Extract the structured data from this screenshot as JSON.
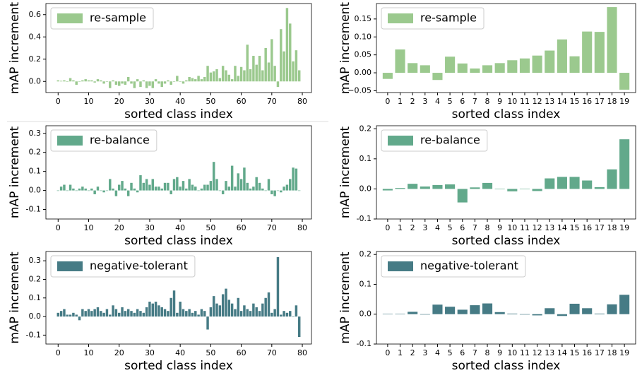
{
  "chart_data": [
    {
      "type": "bar",
      "xlabel": "sorted class index",
      "ylabel": "mAP increment",
      "legend": "re-sample",
      "legend_loc": "upper left",
      "color": "#9bc98e",
      "x": [
        0,
        1,
        2,
        3,
        4,
        5,
        6,
        7,
        8,
        9,
        10,
        11,
        12,
        13,
        14,
        15,
        16,
        17,
        18,
        19,
        20,
        21,
        22,
        23,
        24,
        25,
        26,
        27,
        28,
        29,
        30,
        31,
        32,
        33,
        34,
        35,
        36,
        37,
        38,
        39,
        40,
        41,
        42,
        43,
        44,
        45,
        46,
        47,
        48,
        49,
        50,
        51,
        52,
        53,
        54,
        55,
        56,
        57,
        58,
        59,
        60,
        61,
        62,
        63,
        64,
        65,
        66,
        67,
        68,
        69,
        70,
        71,
        72,
        73,
        74,
        75,
        76,
        77,
        78,
        79
      ],
      "values": [
        0.01,
        0.005,
        0.01,
        0.0,
        0.03,
        0.01,
        -0.03,
        0.0,
        0.01,
        0.02,
        0.01,
        0.01,
        -0.01,
        0.02,
        0.01,
        -0.02,
        0.0,
        -0.06,
        0.01,
        -0.03,
        -0.04,
        -0.02,
        -0.03,
        0.04,
        -0.02,
        -0.06,
        0.02,
        -0.05,
        0.01,
        -0.06,
        -0.04,
        -0.06,
        0.02,
        -0.02,
        -0.05,
        -0.02,
        0.01,
        -0.03,
        0.0,
        0.05,
        0.0,
        -0.02,
        0.01,
        0.04,
        0.03,
        0.02,
        0.05,
        0.02,
        0.04,
        0.14,
        0.08,
        0.09,
        0.11,
        0.03,
        0.14,
        0.1,
        0.06,
        0.02,
        0.14,
        0.05,
        0.13,
        0.1,
        0.33,
        0.11,
        0.23,
        0.15,
        0.23,
        0.1,
        0.3,
        0.17,
        0.38,
        0.14,
        -0.05,
        0.47,
        0.27,
        0.66,
        0.52,
        0.18,
        0.28,
        0.1
      ],
      "xlim": [
        -4,
        83
      ],
      "xticks": [
        0,
        10,
        20,
        30,
        40,
        50,
        60,
        70,
        80
      ],
      "ylim": [
        -0.1,
        0.7
      ],
      "yticks": [
        {
          "value": 0,
          "label": "0.0"
        },
        0.2,
        0.4,
        0.6
      ]
    },
    {
      "type": "bar",
      "xlabel": "sorted class index",
      "ylabel": "mAP increment",
      "legend": "re-sample",
      "legend_loc": "upper left",
      "color": "#9bc98e",
      "categories": [
        "0",
        "1",
        "2",
        "3",
        "4",
        "5",
        "6",
        "7",
        "8",
        "9",
        "10",
        "11",
        "12",
        "13",
        "14",
        "15",
        "16",
        "17",
        "18",
        "19"
      ],
      "values": [
        -0.017,
        0.065,
        0.027,
        0.021,
        -0.02,
        0.045,
        0.026,
        0.012,
        0.021,
        0.027,
        0.035,
        0.04,
        0.048,
        0.062,
        0.093,
        0.046,
        0.115,
        0.114,
        0.183,
        -0.047
      ],
      "ylim": [
        -0.055,
        0.193
      ],
      "yticks": [
        {
          "value": -0.05,
          "label": "−0.05"
        },
        {
          "value": 0,
          "label": "0.00"
        },
        {
          "value": 0.05,
          "label": "0.05"
        },
        {
          "value": 0.1,
          "label": "0.10"
        },
        {
          "value": 0.15,
          "label": "0.15"
        }
      ]
    },
    {
      "type": "bar",
      "xlabel": "sorted class index",
      "ylabel": "mAP increment",
      "legend": "re-balance",
      "legend_loc": "upper left",
      "color": "#62a98b",
      "x": [
        0,
        1,
        2,
        3,
        4,
        5,
        6,
        7,
        8,
        9,
        10,
        11,
        12,
        13,
        14,
        15,
        16,
        17,
        18,
        19,
        20,
        21,
        22,
        23,
        24,
        25,
        26,
        27,
        28,
        29,
        30,
        31,
        32,
        33,
        34,
        35,
        36,
        37,
        38,
        39,
        40,
        41,
        42,
        43,
        44,
        45,
        46,
        47,
        48,
        49,
        50,
        51,
        52,
        53,
        54,
        55,
        56,
        57,
        58,
        59,
        60,
        61,
        62,
        63,
        64,
        65,
        66,
        67,
        68,
        69,
        70,
        71,
        72,
        73,
        74,
        75,
        76,
        77,
        78,
        79
      ],
      "values": [
        0.0,
        0.02,
        0.03,
        0.0,
        0.03,
        0.01,
        0.0,
        0.01,
        0.02,
        0.01,
        0.0,
        0.01,
        -0.02,
        0.02,
        0.0,
        -0.01,
        0.0,
        0.06,
        0.01,
        -0.03,
        0.03,
        0.05,
        0.01,
        -0.03,
        0.04,
        0.01,
        -0.01,
        0.08,
        0.04,
        0.06,
        0.03,
        0.06,
        0.02,
        0.02,
        0.01,
        0.04,
        0.04,
        -0.02,
        0.06,
        0.07,
        0.02,
        0.05,
        0.01,
        0.06,
        0.03,
        0.02,
        0.0,
        0.01,
        0.03,
        0.03,
        0.05,
        0.15,
        0.06,
        0.0,
        -0.02,
        0.05,
        0.02,
        0.13,
        0.02,
        0.09,
        0.06,
        0.12,
        0.04,
        0.01,
        0.02,
        0.07,
        0.04,
        0.01,
        0.0,
        0.06,
        -0.02,
        -0.03,
        0.0,
        -0.01,
        0.02,
        0.03,
        0.06,
        0.12,
        0.115,
        0.0
      ],
      "xlim": [
        -4,
        83
      ],
      "xticks": [
        0,
        10,
        20,
        30,
        40,
        50,
        60,
        70,
        80
      ],
      "ylim": [
        -0.15,
        0.34
      ],
      "yticks": [
        -0.1,
        {
          "value": 0,
          "label": "0.0"
        },
        0.1,
        0.2,
        0.3
      ]
    },
    {
      "type": "bar",
      "xlabel": "sorted class index",
      "ylabel": "mAP increment",
      "legend": "re-balance",
      "legend_loc": "upper left",
      "color": "#62a98b",
      "categories": [
        "0",
        "1",
        "2",
        "3",
        "4",
        "5",
        "6",
        "7",
        "8",
        "9",
        "10",
        "11",
        "12",
        "13",
        "14",
        "15",
        "16",
        "17",
        "18",
        "19"
      ],
      "values": [
        -0.005,
        0.003,
        0.017,
        0.008,
        0.013,
        0.015,
        -0.045,
        0.005,
        0.02,
        0.0,
        -0.008,
        0.0,
        -0.007,
        0.035,
        0.04,
        0.04,
        0.028,
        0.006,
        0.065,
        0.165
      ],
      "ylim": [
        -0.1,
        0.21
      ],
      "yticks": [
        -0.1,
        {
          "value": 0,
          "label": "0.0"
        },
        0.1,
        0.2
      ]
    },
    {
      "type": "bar",
      "xlabel": "sorted class index",
      "ylabel": "mAP increment",
      "legend": "negative-tolerant",
      "legend_loc": "upper left",
      "color": "#467b85",
      "x": [
        0,
        1,
        2,
        3,
        4,
        5,
        6,
        7,
        8,
        9,
        10,
        11,
        12,
        13,
        14,
        15,
        16,
        17,
        18,
        19,
        20,
        21,
        22,
        23,
        24,
        25,
        26,
        27,
        28,
        29,
        30,
        31,
        32,
        33,
        34,
        35,
        36,
        37,
        38,
        39,
        40,
        41,
        42,
        43,
        44,
        45,
        46,
        47,
        48,
        49,
        50,
        51,
        52,
        53,
        54,
        55,
        56,
        57,
        58,
        59,
        60,
        61,
        62,
        63,
        64,
        65,
        66,
        67,
        68,
        69,
        70,
        71,
        72,
        73,
        74,
        75,
        76,
        77,
        78,
        79
      ],
      "values": [
        0.02,
        0.03,
        0.04,
        0.01,
        0.01,
        0.02,
        0.01,
        -0.02,
        0.04,
        0.03,
        0.04,
        0.03,
        0.04,
        0.05,
        0.03,
        0.02,
        0.04,
        0.01,
        0.06,
        0.04,
        0.02,
        0.05,
        0.03,
        0.04,
        0.03,
        0.02,
        0.04,
        0.03,
        0.02,
        0.05,
        0.08,
        0.07,
        0.08,
        0.06,
        0.05,
        0.04,
        0.03,
        0.1,
        0.14,
        0.02,
        0.08,
        0.04,
        0.03,
        0.04,
        0.02,
        0.03,
        0.01,
        0.04,
        0.03,
        -0.07,
        0.05,
        0.11,
        0.07,
        0.06,
        0.12,
        0.15,
        0.09,
        0.07,
        0.04,
        0.1,
        0.03,
        0.06,
        0.04,
        0.03,
        0.07,
        0.05,
        0.03,
        0.07,
        0.1,
        0.13,
        0.02,
        0.04,
        0.32,
        0.01,
        0.03,
        0.02,
        0.03,
        0.0,
        0.06,
        -0.11
      ],
      "xlim": [
        -4,
        83
      ],
      "xticks": [
        0,
        10,
        20,
        30,
        40,
        50,
        60,
        70,
        80
      ],
      "ylim": [
        -0.148,
        0.35
      ],
      "yticks": [
        -0.1,
        {
          "value": 0,
          "label": "0.0"
        },
        0.1,
        0.2,
        0.3
      ]
    },
    {
      "type": "bar",
      "xlabel": "sorted class index",
      "ylabel": "mAP increment",
      "legend": "negative-tolerant",
      "legend_loc": "upper left",
      "color": "#467b85",
      "categories": [
        "0",
        "1",
        "2",
        "3",
        "4",
        "5",
        "6",
        "7",
        "8",
        "9",
        "10",
        "11",
        "12",
        "13",
        "14",
        "15",
        "16",
        "17",
        "18",
        "19"
      ],
      "values": [
        0.001,
        0.001,
        0.008,
        0.0,
        0.032,
        0.025,
        0.015,
        0.03,
        0.036,
        0.007,
        0.002,
        0.0,
        -0.004,
        0.02,
        -0.006,
        0.035,
        0.02,
        0.002,
        0.033,
        0.065
      ],
      "ylim": [
        -0.1,
        0.21
      ],
      "yticks": [
        -0.1,
        {
          "value": 0,
          "label": "0.0"
        },
        0.1,
        0.2
      ]
    }
  ]
}
